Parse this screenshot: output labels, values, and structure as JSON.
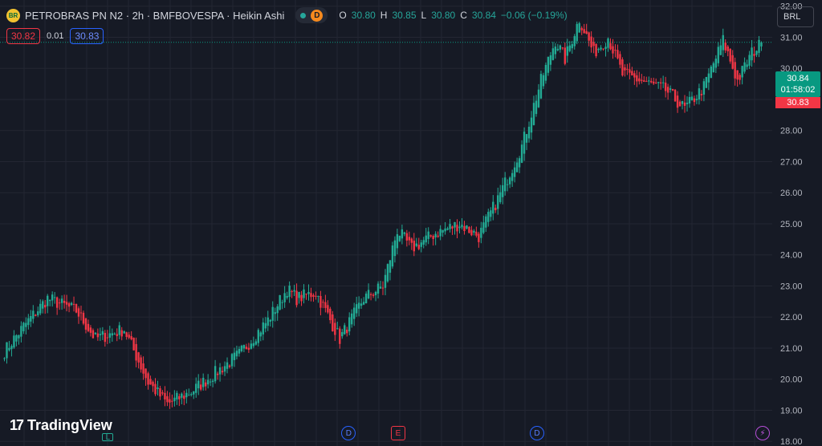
{
  "header": {
    "logo_text": "BR",
    "title": "PETROBRAS PN N2 · 2h · BMFBOVESPA · Heikin Ashi",
    "market_badge": "D",
    "ohlc": [
      {
        "key": "O",
        "value": "30.80"
      },
      {
        "key": "H",
        "value": "30.85"
      },
      {
        "key": "L",
        "value": "30.80"
      },
      {
        "key": "C",
        "value": "30.84"
      }
    ],
    "change": "−0.06 (−0.19%)"
  },
  "quote": {
    "sell": "30.82",
    "spread": "0.01",
    "buy": "30.83"
  },
  "currency": "BRL",
  "last_price": {
    "price": "30.84",
    "countdown": "01:58:02",
    "bid": "30.83"
  },
  "branding": {
    "name": "TradingView",
    "mark": "17"
  },
  "events": [
    {
      "type": "split",
      "label": "L",
      "pos": 0.14
    },
    {
      "type": "dividend",
      "label": "D",
      "pos": 0.455
    },
    {
      "type": "earnings",
      "label": "E",
      "pos": 0.52
    },
    {
      "type": "dividend",
      "label": "D",
      "pos": 0.703
    },
    {
      "type": "other",
      "label": "⚡",
      "pos": 1.0
    }
  ],
  "colors": {
    "up": "#22ab94",
    "down": "#f23645",
    "grid": "#232632",
    "background": "#161a25"
  },
  "chart_data": {
    "type": "candlestick",
    "style": "Heikin Ashi",
    "yticks": [
      "32.00",
      "31.00",
      "30.00",
      "29.00",
      "28.00",
      "27.00",
      "26.00",
      "25.00",
      "24.00",
      "23.00",
      "22.00",
      "21.00",
      "20.00",
      "19.00",
      "18.00"
    ],
    "ylim": [
      17.85,
      32.2
    ],
    "last_value": 30.84,
    "key_points": [
      {
        "i": 0,
        "v": 20.9
      },
      {
        "i": 8,
        "v": 21.7
      },
      {
        "i": 18,
        "v": 22.6
      },
      {
        "i": 30,
        "v": 22.2
      },
      {
        "i": 38,
        "v": 21.3
      },
      {
        "i": 50,
        "v": 21.6
      },
      {
        "i": 60,
        "v": 19.9
      },
      {
        "i": 68,
        "v": 19.2
      },
      {
        "i": 78,
        "v": 19.6
      },
      {
        "i": 88,
        "v": 20.2
      },
      {
        "i": 98,
        "v": 20.8
      },
      {
        "i": 110,
        "v": 21.9
      },
      {
        "i": 118,
        "v": 22.9
      },
      {
        "i": 122,
        "v": 22.6
      },
      {
        "i": 130,
        "v": 22.8
      },
      {
        "i": 140,
        "v": 21.3
      },
      {
        "i": 150,
        "v": 22.6
      },
      {
        "i": 158,
        "v": 23.0
      },
      {
        "i": 164,
        "v": 24.8
      },
      {
        "i": 170,
        "v": 24.2
      },
      {
        "i": 180,
        "v": 24.7
      },
      {
        "i": 190,
        "v": 25.0
      },
      {
        "i": 198,
        "v": 24.6
      },
      {
        "i": 206,
        "v": 25.8
      },
      {
        "i": 216,
        "v": 27.5
      },
      {
        "i": 224,
        "v": 29.6
      },
      {
        "i": 230,
        "v": 30.9
      },
      {
        "i": 234,
        "v": 30.3
      },
      {
        "i": 240,
        "v": 31.6
      },
      {
        "i": 246,
        "v": 30.5
      },
      {
        "i": 252,
        "v": 31.0
      },
      {
        "i": 258,
        "v": 29.8
      },
      {
        "i": 266,
        "v": 29.6
      },
      {
        "i": 276,
        "v": 29.3
      },
      {
        "i": 284,
        "v": 28.7
      },
      {
        "i": 292,
        "v": 29.4
      },
      {
        "i": 300,
        "v": 30.9
      },
      {
        "i": 306,
        "v": 29.6
      },
      {
        "i": 312,
        "v": 30.5
      },
      {
        "i": 316,
        "v": 30.8
      }
    ]
  }
}
